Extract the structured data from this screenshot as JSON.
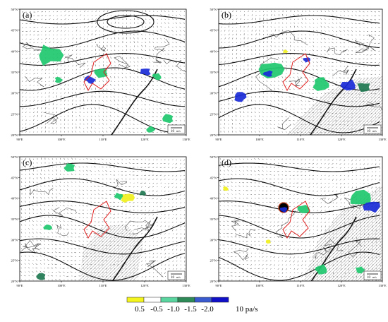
{
  "panels": [
    {
      "id": "a",
      "label": "(a)",
      "lat_ticks": [
        "50°N",
        "45°N",
        "40°N",
        "35°N",
        "30°N",
        "25°N",
        "20°N"
      ],
      "lon_ticks": [
        "90°E",
        "100°E",
        "110°E",
        "120°E",
        "130°E"
      ],
      "ref_vector": "10",
      "ref_unit": "m/s"
    },
    {
      "id": "b",
      "label": "(b)",
      "lat_ticks": [
        "50°N",
        "45°N",
        "40°N",
        "35°N",
        "30°N",
        "25°N",
        "20°N"
      ],
      "lon_ticks": [
        "90°E",
        "100°E",
        "110°E",
        "120°E",
        "130°E"
      ],
      "ref_vector": "10",
      "ref_unit": "m/s"
    },
    {
      "id": "c",
      "label": "(c)",
      "lat_ticks": [
        "50°N",
        "45°N",
        "40°N",
        "35°N",
        "30°N",
        "25°N",
        "20°N"
      ],
      "lon_ticks": [
        "90°E",
        "100°E",
        "110°E",
        "120°E",
        "130°E"
      ],
      "ref_vector": "10",
      "ref_unit": "m/s"
    },
    {
      "id": "d",
      "label": "(d)",
      "lat_ticks": [
        "50°N",
        "45°N",
        "40°N",
        "35°N",
        "30°N",
        "25°N",
        "20°N"
      ],
      "lon_ticks": [
        "90°E",
        "100°E",
        "110°E",
        "120°E",
        "130°E"
      ],
      "ref_vector": "10",
      "ref_unit": "m/s"
    }
  ],
  "colorbar": {
    "labels": [
      "0.5",
      "-0.5",
      "-1.0",
      "-1.5",
      "-2.0",
      "10 pa/s"
    ],
    "colors": [
      "#f5f51e",
      "#ffffff",
      "#5ad5a0",
      "#2e8b57",
      "#3a5bd0",
      "#1010c8"
    ]
  },
  "colors": {
    "green_shade": "#1ec86e",
    "dark_green": "#1e7850",
    "blue_shade": "#1a2bd8",
    "yellow_shade": "#f0f01e",
    "region_outline": "#e02020",
    "contour": "#111111"
  }
}
